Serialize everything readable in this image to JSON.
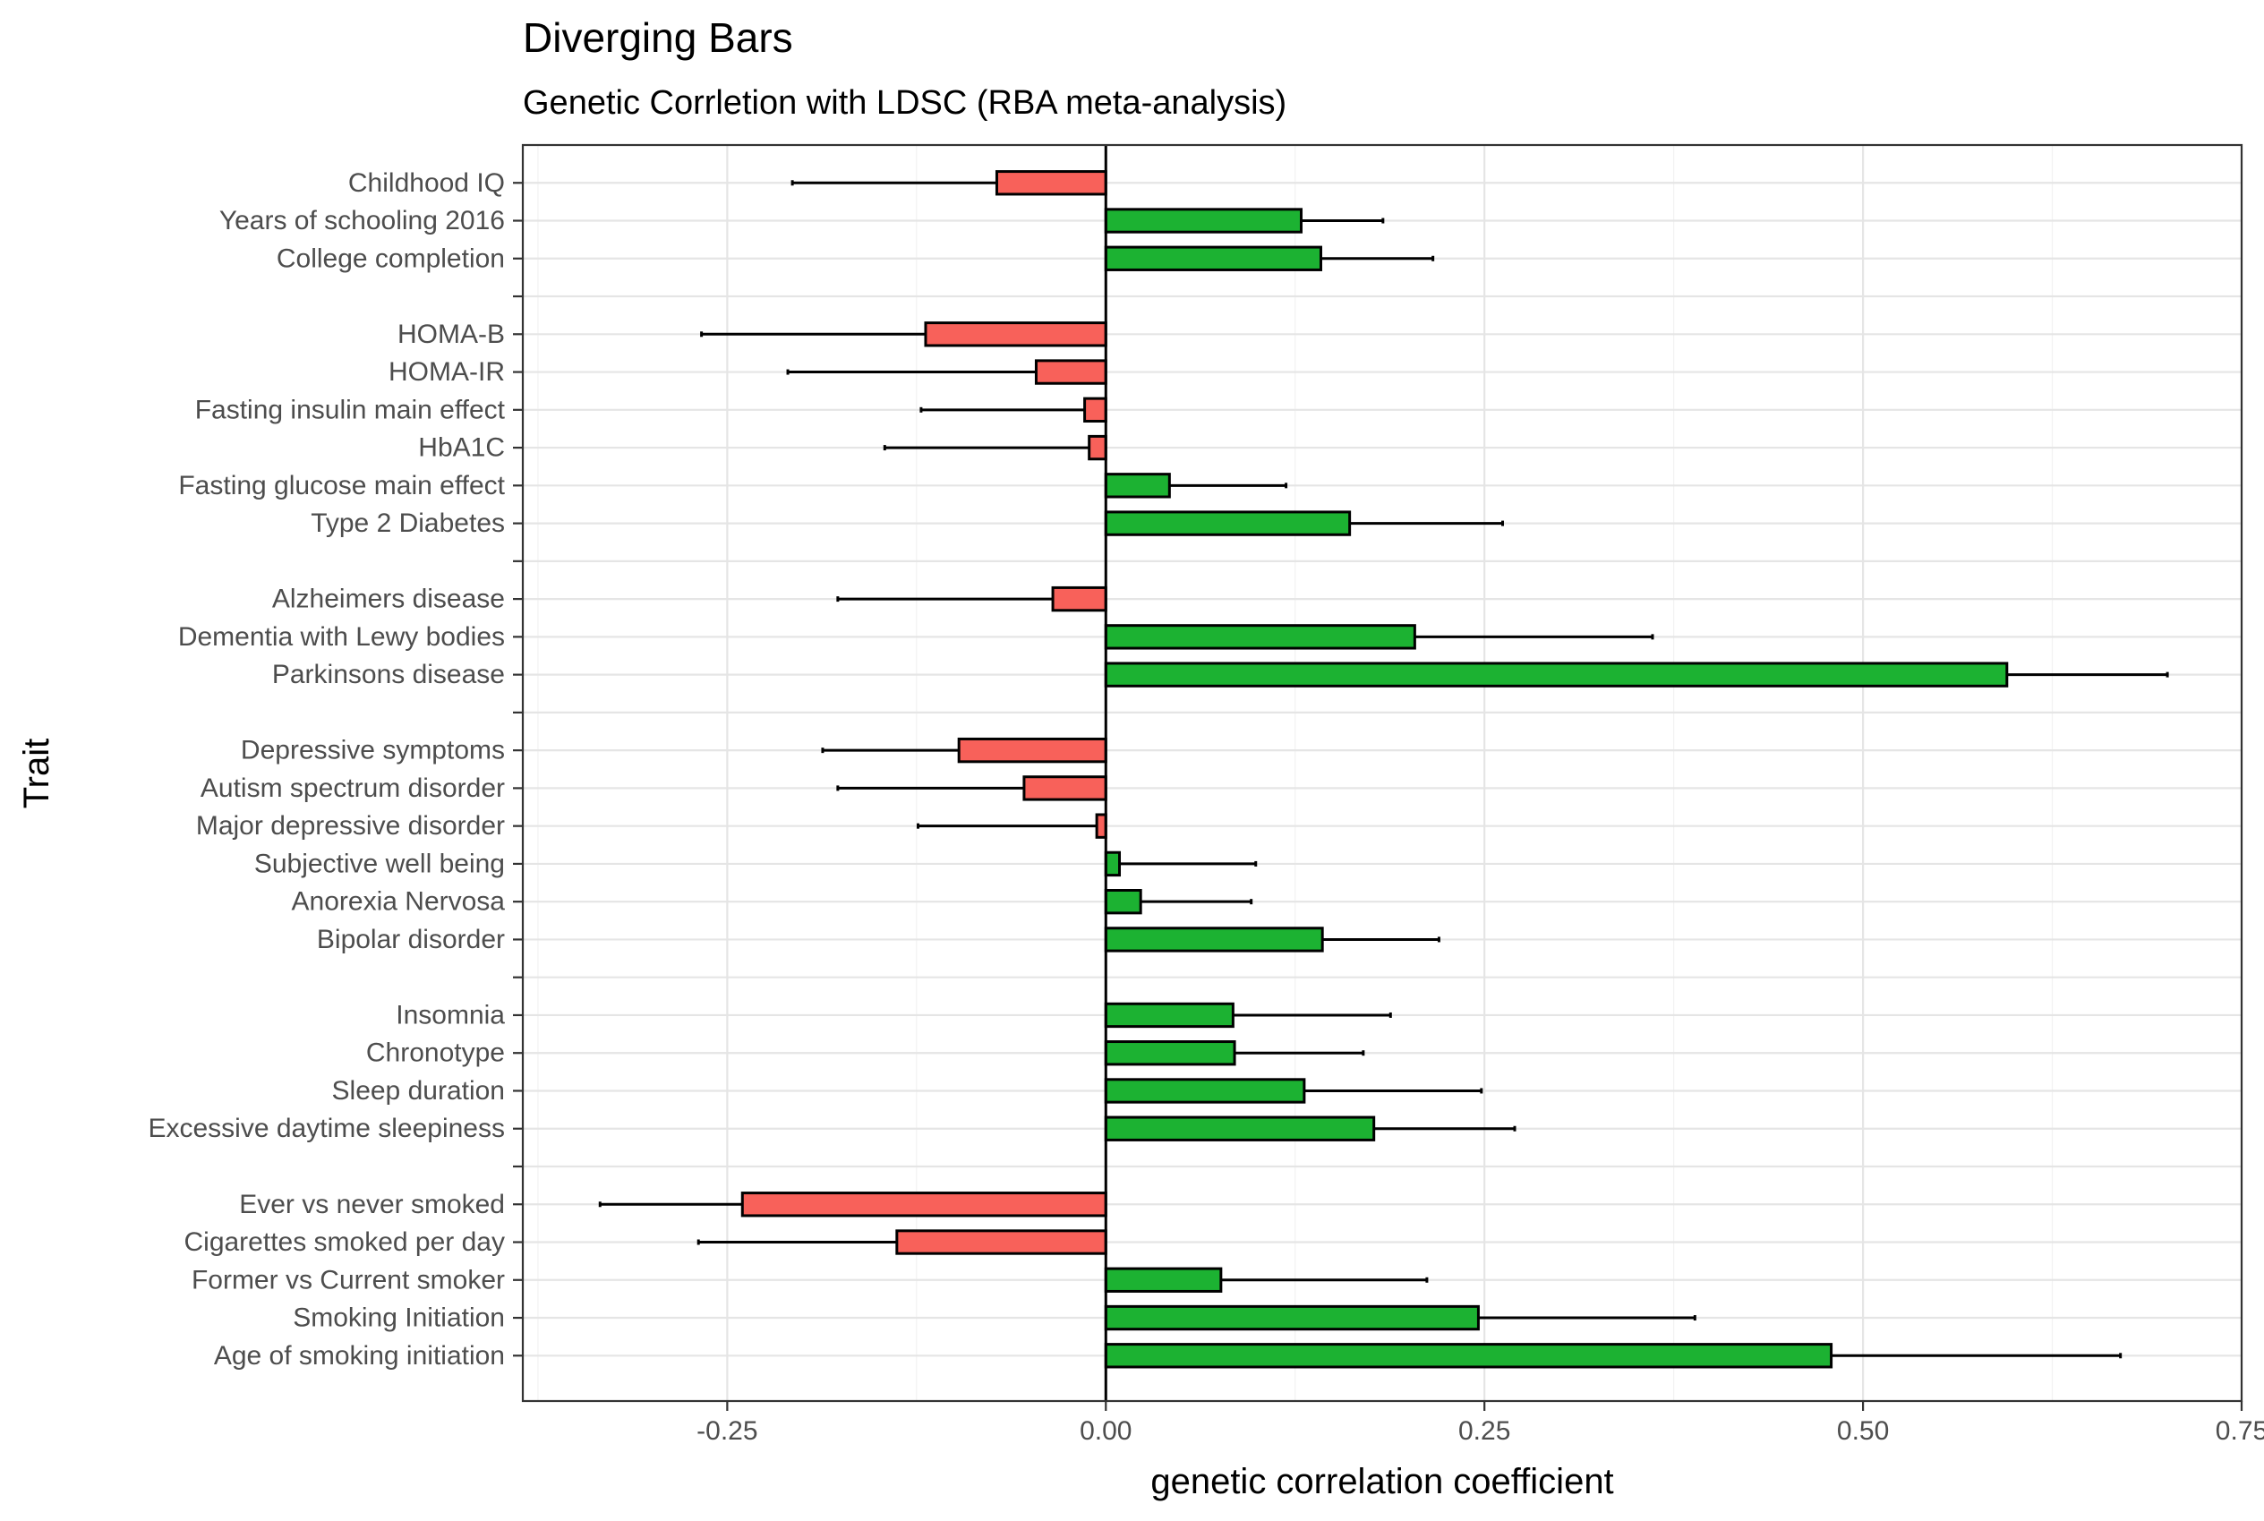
{
  "chart_data": {
    "type": "bar",
    "orientation": "horizontal",
    "title": "Diverging Bars",
    "subtitle": "Genetic Corrletion with LDSC (RBA meta-analysis)",
    "xlabel": "genetic correlation coefficient",
    "ylabel": "Trait",
    "xlim": [
      -0.385,
      0.75
    ],
    "xticks": [
      -0.25,
      0.0,
      0.25,
      0.5,
      0.75
    ],
    "xtick_labels": [
      "-0.25",
      "0.00",
      "0.25",
      "0.50",
      "0.75"
    ],
    "grid": true,
    "colors": {
      "negative": "#F8615A",
      "positive": "#1CB232"
    },
    "categories": [
      "Childhood IQ",
      "Years of schooling 2016",
      "College completion",
      "",
      "HOMA-B",
      "HOMA-IR",
      "Fasting insulin main effect",
      "HbA1C",
      "Fasting glucose main effect",
      "Type 2 Diabetes",
      "",
      "Alzheimers disease",
      "Dementia with Lewy bodies",
      "Parkinsons disease",
      "",
      "Depressive symptoms",
      "Autism spectrum disorder",
      "Major depressive disorder",
      "Subjective well being",
      "Anorexia Nervosa",
      "Bipolar disorder",
      "",
      "Insomnia",
      "Chronotype",
      "Sleep duration",
      "Excessive daytime sleepiness",
      "",
      "Ever vs never smoked",
      "Cigarettes smoked per day",
      "Former vs Current smoker",
      "Smoking Initiation",
      "Age of smoking initiation"
    ],
    "values": [
      -0.072,
      0.129,
      0.142,
      0,
      -0.119,
      -0.046,
      -0.014,
      -0.011,
      0.042,
      0.161,
      0,
      -0.035,
      0.204,
      0.595,
      0,
      -0.097,
      -0.054,
      -0.006,
      0.009,
      0.023,
      0.143,
      0,
      0.084,
      0.085,
      0.131,
      0.177,
      0,
      -0.24,
      -0.138,
      0.076,
      0.246,
      0.479
    ],
    "error_low": [
      -0.207,
      null,
      null,
      null,
      -0.267,
      -0.21,
      -0.122,
      -0.146,
      null,
      null,
      null,
      -0.177,
      null,
      null,
      null,
      -0.187,
      -0.177,
      -0.124,
      null,
      null,
      null,
      null,
      null,
      null,
      null,
      null,
      null,
      -0.334,
      -0.269,
      null,
      null,
      null
    ],
    "error_high": [
      null,
      0.183,
      0.216,
      null,
      null,
      null,
      null,
      null,
      0.119,
      0.262,
      null,
      null,
      0.361,
      0.701,
      null,
      null,
      null,
      null,
      0.099,
      0.096,
      0.22,
      null,
      0.188,
      0.17,
      0.248,
      0.27,
      null,
      null,
      null,
      0.212,
      0.389,
      0.67
    ]
  }
}
